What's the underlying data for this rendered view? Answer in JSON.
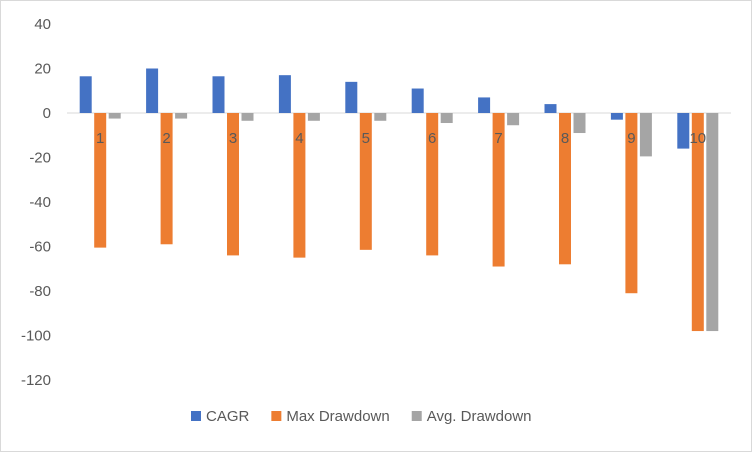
{
  "chart_data": {
    "type": "bar",
    "title": "",
    "xlabel": "",
    "ylabel": "",
    "categories": [
      "1",
      "2",
      "3",
      "4",
      "5",
      "6",
      "7",
      "8",
      "9",
      "10"
    ],
    "series": [
      {
        "name": "CAGR",
        "color": "#4472C4",
        "values": [
          16.5,
          20,
          16.5,
          17,
          14,
          11,
          7,
          4,
          -3,
          -16
        ]
      },
      {
        "name": "Max Drawdown",
        "color": "#ED7D31",
        "values": [
          -60.5,
          -59,
          -64,
          -65,
          -61.5,
          -64,
          -69,
          -68,
          -81,
          -98
        ]
      },
      {
        "name": "Avg. Drawdown",
        "color": "#A5A5A5",
        "values": [
          -2.5,
          -2.5,
          -3.5,
          -3.5,
          -3.5,
          -4.5,
          -5.5,
          -9,
          -19.5,
          -98
        ]
      }
    ],
    "ylim": [
      -120,
      40
    ],
    "yticks": [
      40,
      20,
      0,
      -20,
      -40,
      -60,
      -80,
      -100,
      -120
    ],
    "grid": false,
    "legend_position": "bottom"
  }
}
